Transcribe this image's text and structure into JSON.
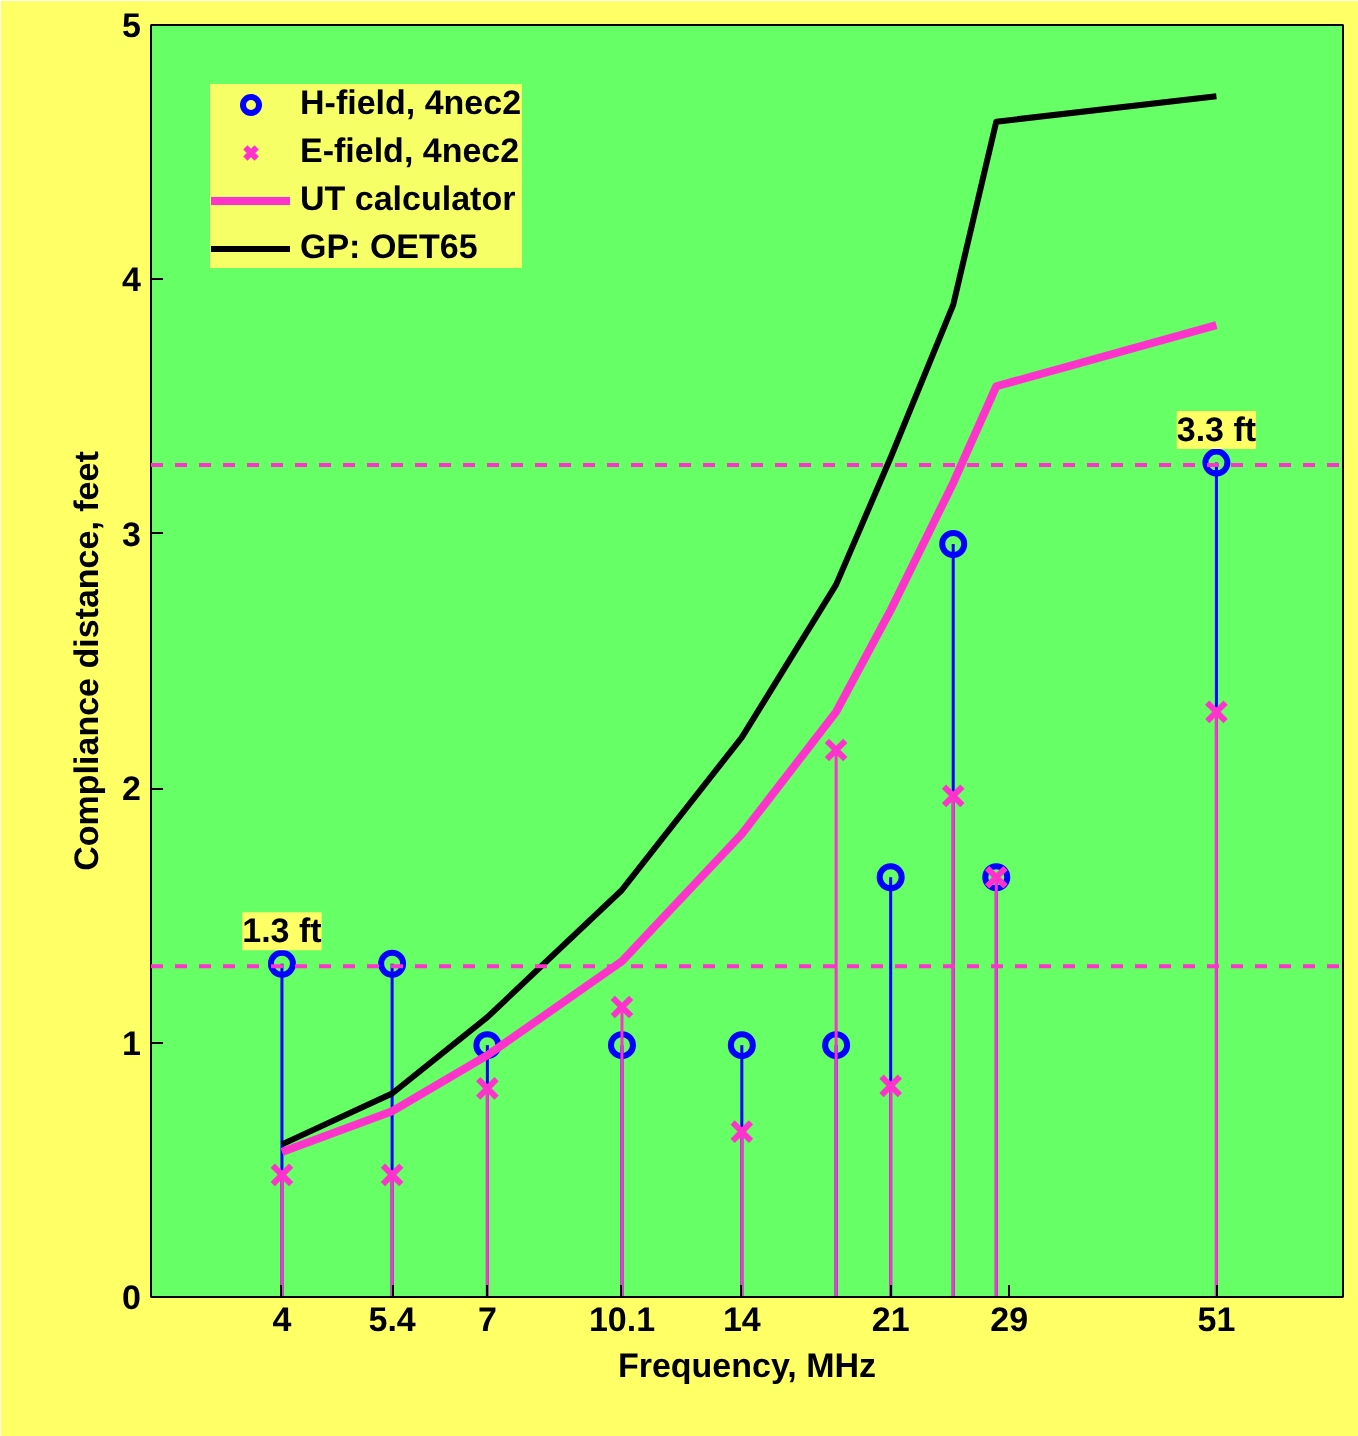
{
  "chart_data": {
    "type": "line",
    "xlabel": "Frequency, MHz",
    "ylabel": "Compliance distance, feet",
    "x": [
      4,
      5.4,
      7,
      10.1,
      14,
      18.1,
      21,
      24.9,
      28,
      51
    ],
    "log": "x",
    "xlim": [
      2.8,
      72
    ],
    "xticks": [
      4,
      5.4,
      7,
      10.1,
      14,
      21,
      29,
      51
    ],
    "ylim": [
      0,
      5
    ],
    "yticks": [
      0,
      1,
      2,
      3,
      4,
      5
    ],
    "grid": false,
    "legend": "top left",
    "series": [
      {
        "name": "H-field, 4nec2",
        "type": "lollipop",
        "marker": "circle",
        "color": "#0000ff",
        "values": [
          1.31,
          1.31,
          0.99,
          0.99,
          0.99,
          0.99,
          1.65,
          2.96,
          1.65,
          3.28
        ]
      },
      {
        "name": "E-field, 4nec2",
        "type": "lollipop",
        "marker": "cross",
        "color": "#ff33cc",
        "values": [
          0.48,
          0.48,
          0.82,
          1.14,
          0.65,
          2.15,
          0.83,
          1.97,
          1.65,
          2.3
        ]
      },
      {
        "name": "UT calculator",
        "marker": "none",
        "color": "#ff33cc",
        "values": [
          0.57,
          0.73,
          0.95,
          1.32,
          1.82,
          2.3,
          2.7,
          3.2,
          3.58,
          3.82
        ]
      },
      {
        "name": "GP: OET65",
        "marker": "none",
        "color": "#000000",
        "values": [
          0.6,
          0.8,
          1.1,
          1.6,
          2.2,
          2.8,
          3.3,
          3.9,
          4.62,
          4.72
        ]
      }
    ],
    "ref_lines": [
      {
        "axis": "y",
        "value": 1.3,
        "label": "1.3 ft",
        "color": "#ff33cc",
        "line_style": "dashed"
      },
      {
        "axis": "y",
        "value": 3.27,
        "label": "3.3 ft",
        "color": "#ff33cc",
        "line_style": "dashed"
      }
    ]
  }
}
